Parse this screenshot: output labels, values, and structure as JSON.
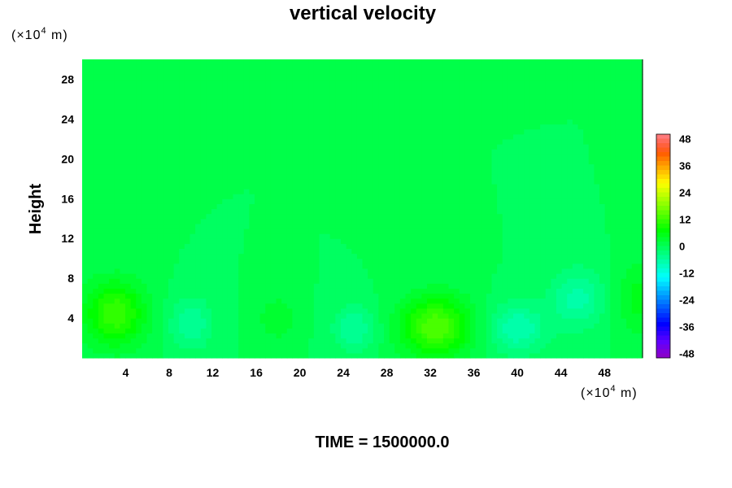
{
  "chart_data": {
    "type": "heatmap",
    "title": "vertical velocity",
    "ylabel": "Height",
    "x_unit": {
      "prefix": "(×10",
      "exp": "4",
      "suffix": " m)"
    },
    "y_unit": {
      "prefix": "(×10",
      "exp": "4",
      "suffix": " m)"
    },
    "footer": "TIME = 1500000.0",
    "xlim": [
      0,
      51.5
    ],
    "ylim": [
      0,
      30
    ],
    "xticks": [
      4,
      8,
      12,
      16,
      20,
      24,
      28,
      32,
      36,
      40,
      44,
      48
    ],
    "yticks": [
      4,
      8,
      12,
      16,
      20,
      24,
      28
    ],
    "colorbar": {
      "vmin": -50,
      "vmax": 50,
      "ticks": [
        48,
        36,
        24,
        12,
        0,
        -12,
        -24,
        -36,
        -48
      ],
      "levels": 50
    },
    "background_value": 0,
    "features": [
      {
        "x": 3,
        "y": 4.5,
        "sx": 2.8,
        "sy": 3.2,
        "value": 12
      },
      {
        "x": 10,
        "y": 3.5,
        "sx": 2.0,
        "sy": 2.6,
        "value": -6
      },
      {
        "x": 18,
        "y": 4.0,
        "sx": 1.8,
        "sy": 2.2,
        "value": 4
      },
      {
        "x": 25,
        "y": 3.0,
        "sx": 2.0,
        "sy": 2.3,
        "value": -6
      },
      {
        "x": 32.5,
        "y": 3.2,
        "sx": 3.2,
        "sy": 3.0,
        "value": 14
      },
      {
        "x": 40,
        "y": 3.0,
        "sx": 2.6,
        "sy": 2.5,
        "value": -8
      },
      {
        "x": 45.5,
        "y": 6.0,
        "sx": 2.4,
        "sy": 3.0,
        "value": -7
      },
      {
        "x": 51,
        "y": 6.0,
        "sx": 1.8,
        "sy": 3.5,
        "value": 5
      }
    ],
    "grid": false,
    "legend": "colorbar-right"
  }
}
